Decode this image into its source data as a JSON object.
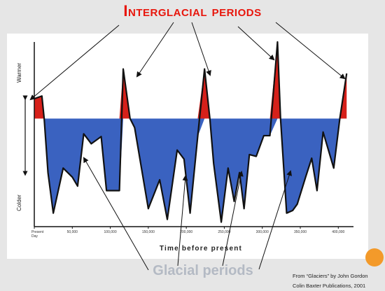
{
  "slide": {
    "title": "Interglacial periods",
    "glacial_label": "Glacial periods",
    "credit_line1": "From “Glaciers” by John Gordon",
    "credit_line2": "Colin Baxter Publications, 2001"
  },
  "colors": {
    "background": "#e6e6e6",
    "title": "#e8160c",
    "interglacial_fill": "#d6201a",
    "glacial_fill": "#3a62c0",
    "outline": "#111111",
    "glacial_label": "#b4bac4",
    "accent_dot": "#f39a2a"
  },
  "chart_data": {
    "type": "area",
    "xlabel": "Time before present",
    "ylabel_top": "Warmer",
    "ylabel_bottom": "Colder",
    "x_ticks": [
      {
        "value": 0,
        "label": "Present Day"
      },
      {
        "value": 50000,
        "label": "50,000"
      },
      {
        "value": 100000,
        "label": "100,000"
      },
      {
        "value": 150000,
        "label": "150,000"
      },
      {
        "value": 200000,
        "label": "200,000"
      },
      {
        "value": 250000,
        "label": "250,000"
      },
      {
        "value": 300000,
        "label": "300,000"
      },
      {
        "value": 350000,
        "label": "350,000"
      },
      {
        "value": 400000,
        "label": "400,000"
      }
    ],
    "xlim": [
      0,
      420000
    ],
    "ylim": [
      -1.2,
      0.85
    ],
    "baseline": 0,
    "series": [
      {
        "x": [
          0,
          10000,
          13000,
          18000,
          25000,
          38000,
          50000,
          57000,
          65000,
          75000,
          88000,
          95000,
          112000,
          117000,
          126000,
          132000,
          141000,
          150000,
          165000,
          175000,
          188000,
          197000,
          205000,
          215000,
          224000,
          231000,
          236000,
          246000,
          255000,
          263000,
          270000,
          276000,
          283000,
          292000,
          302000,
          310000,
          320000,
          324000,
          332000,
          340000,
          346000,
          357000,
          365000,
          372000,
          380000,
          394000,
          402000,
          411000
        ],
        "y": [
          0.22,
          0.25,
          0.0,
          -0.6,
          -1.05,
          -0.55,
          -0.65,
          -0.75,
          -0.17,
          -0.28,
          -0.2,
          -0.8,
          -0.8,
          0.55,
          0.0,
          -0.1,
          -0.55,
          -1.0,
          -0.68,
          -1.12,
          -0.35,
          -0.45,
          -1.05,
          -0.2,
          0.55,
          0.0,
          -0.5,
          -1.15,
          -0.55,
          -0.92,
          -0.6,
          -1.0,
          -0.4,
          -0.42,
          -0.19,
          -0.19,
          0.85,
          0.0,
          -1.05,
          -1.02,
          -0.95,
          -0.65,
          -0.44,
          -0.8,
          -0.15,
          -0.55,
          0.0,
          0.5
        ]
      }
    ],
    "legend": "none",
    "grid": false
  }
}
